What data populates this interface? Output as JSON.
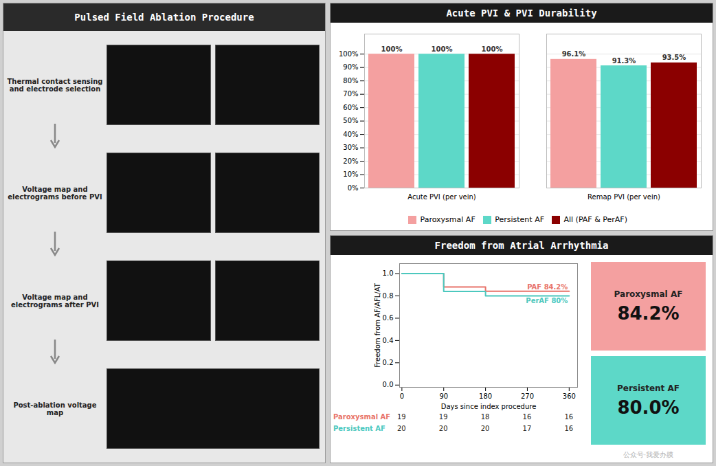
{
  "chart_data": [
    {
      "type": "diagram",
      "title": "Pulsed Field Ablation Procedure",
      "annotations": [
        "Thermal contact sensing\nand electrode selection",
        "Voltage map and\nelectrograms before PVI",
        "Voltage map and\nelectrograms after PVI",
        "Post-ablation voltage\nmap"
      ]
    },
    {
      "type": "bar",
      "title": "Acute PVI & PVI Durability",
      "categories": [
        "Acute PVI (per vein)",
        "Remap PVI (per vein)"
      ],
      "series": [
        {
          "name": "Paroxysmal AF",
          "color": "#F4A0A0",
          "values": [
            100,
            96.1
          ],
          "value_labels": [
            "100%",
            "96.1%"
          ]
        },
        {
          "name": "Persistent AF",
          "color": "#5DD8C8",
          "values": [
            100,
            91.3
          ],
          "value_labels": [
            "100%",
            "91.3%"
          ]
        },
        {
          "name": "All (PAF & PerAF)",
          "color": "#8B0000",
          "values": [
            100,
            93.5
          ],
          "value_labels": [
            "100%",
            "93.5%"
          ]
        }
      ],
      "ylim": [
        0,
        115
      ],
      "yticks": [
        {
          "value": 0,
          "label": "0%"
        },
        {
          "value": 10,
          "label": "10%"
        },
        {
          "value": 20,
          "label": "20%"
        },
        {
          "value": 30,
          "label": "30%"
        },
        {
          "value": 40,
          "label": "40%"
        },
        {
          "value": 50,
          "label": "50%"
        },
        {
          "value": 60,
          "label": "60%"
        },
        {
          "value": 70,
          "label": "70%"
        },
        {
          "value": 80,
          "label": "80%"
        },
        {
          "value": 90,
          "label": "90%"
        },
        {
          "value": 100,
          "label": "100%"
        }
      ],
      "grid": true,
      "legend": "bottom",
      "data_labels": true
    },
    {
      "type": "step",
      "title": "Freedom from Atrial Arrhythmia",
      "x": [
        0,
        90,
        90,
        180,
        180,
        270,
        270,
        360
      ],
      "series": [
        {
          "name": "PAF 84.2%",
          "color": "#E8736A",
          "values": [
            1.0,
            1.0,
            0.88,
            0.88,
            0.842,
            0.842,
            0.842,
            0.842
          ]
        },
        {
          "name": "PerAF 80%",
          "color": "#4CC8BE",
          "values": [
            1.0,
            1.0,
            0.84,
            0.84,
            0.8,
            0.8,
            0.8,
            0.8
          ]
        }
      ],
      "xlabel": "Days since index procedure",
      "ylabel": "Freedom from AF/AFL/AT",
      "xlim": [
        -5,
        378
      ],
      "xticks": [
        0,
        90,
        180,
        270,
        360
      ],
      "ylim": [
        -0.02,
        1.09
      ],
      "yticks": [
        {
          "value": 0,
          "label": "0.0"
        },
        0.2,
        0.4,
        0.6,
        0.8,
        {
          "value": 1,
          "label": "1.0"
        }
      ],
      "risk_table": [
        {
          "name": "Paroxysmal AF",
          "color": "#E8736A",
          "values": [
            19,
            19,
            18,
            16,
            16
          ]
        },
        {
          "name": "Persistent AF",
          "color": "#4CC8BE",
          "values": [
            20,
            20,
            20,
            17,
            16
          ]
        }
      ],
      "risk_table_x": [
        0,
        90,
        180,
        270,
        360
      ],
      "stats": [
        {
          "name": "Paroxysmal AF",
          "color": "#F4A0A0",
          "value": 84.2,
          "value_label": "84.2%"
        },
        {
          "name": "Persistent AF",
          "color": "#5DD8C8",
          "value": 80.0,
          "value_label": "80.0%"
        }
      ],
      "annotations": [
        "公众号·我爱办膜"
      ]
    }
  ]
}
